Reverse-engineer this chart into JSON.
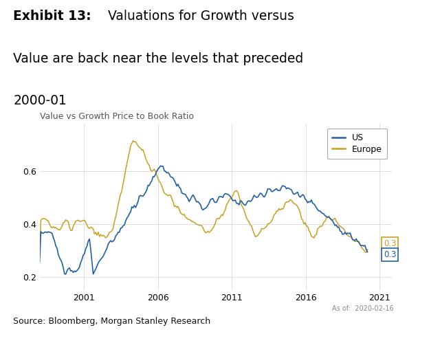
{
  "title_bold": "Exhibit 13:",
  "title_rest_line1": "  Valuations for Growth versus",
  "title_line2": "Value are back near the levels that preceded",
  "title_line3": "2000-01",
  "chart_subtitle": "Value vs Growth Price to Book Ratio",
  "us_color": "#1f5fa6",
  "europe_color": "#c8a020",
  "us_label": "US",
  "europe_label": "Europe",
  "source_text": "Source: Bloomberg, Morgan Stanley Research",
  "as_of_text": "As of:  2020-02-16",
  "us_end_label": "0.3",
  "europe_end_label": "0.3",
  "ylim": [
    0.15,
    0.78
  ],
  "yticks": [
    0.2,
    0.4,
    0.6
  ],
  "xlabel_years": [
    2001,
    2006,
    2011,
    2016,
    2021
  ],
  "xlim_left": 1998.0,
  "xlim_right": 2021.8,
  "background_color": "#ffffff",
  "grid_color": "#dddddd"
}
